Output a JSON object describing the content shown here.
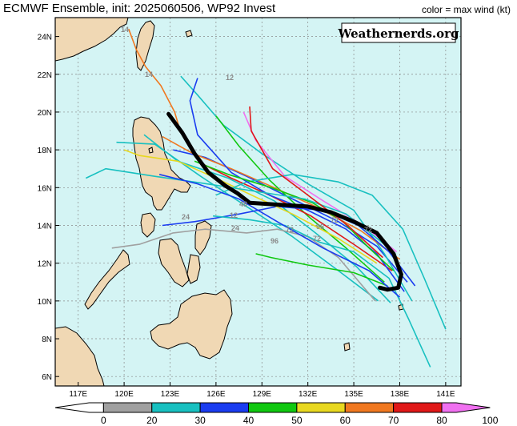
{
  "header": {
    "title": "ECMWF Ensemble, init: 2025060506, WP92 Invest",
    "color_note": "color = max wind (kt)"
  },
  "watermark": "Weathernerds.org",
  "axes": {
    "lon_labels": [
      "117E",
      "120E",
      "123E",
      "126E",
      "129E",
      "132E",
      "135E",
      "138E",
      "141E"
    ],
    "lat_labels": [
      "24N",
      "22N",
      "20N",
      "18N",
      "16N",
      "14N",
      "12N",
      "10N",
      "8N",
      "6N"
    ]
  },
  "colorbar": {
    "ticks": [
      "0",
      "20",
      "30",
      "40",
      "50",
      "60",
      "70",
      "80",
      "100"
    ],
    "colors": [
      "#ffffff",
      "#a0a0a0",
      "#18c0c0",
      "#1a3cf0",
      "#10c810",
      "#e8d820",
      "#f07820",
      "#e01818",
      "#f070f0"
    ]
  },
  "map": {
    "lon_range": [
      115.5,
      142.0
    ],
    "lat_range": [
      5.5,
      25.0
    ],
    "ocean_color": "#d4f4f4",
    "land_color": "#f0d8b4",
    "grid": true
  },
  "track_labels": [
    "14",
    "14",
    "12",
    "24",
    "24",
    "96",
    "72",
    "72",
    "72",
    "96",
    "12",
    "72",
    "48"
  ],
  "chart_data": {
    "type": "line",
    "title": "ECMWF Ensemble, init: 2025060506, WP92 Invest",
    "xlabel": "",
    "ylabel": "",
    "xlim": [
      115.5,
      142.0
    ],
    "ylim": [
      5.5,
      25.0
    ],
    "series": [
      {
        "name": "ensemble mean",
        "color": "#000000",
        "points": [
          [
            122.9,
            19.9
          ],
          [
            123.8,
            18.9
          ],
          [
            124.6,
            17.8
          ],
          [
            125.5,
            16.8
          ],
          [
            126.6,
            16.1
          ],
          [
            127.4,
            15.7
          ],
          [
            128.2,
            15.2
          ],
          [
            130.0,
            15.1
          ],
          [
            132.0,
            15.0
          ],
          [
            133.5,
            14.7
          ],
          [
            135.0,
            14.2
          ],
          [
            136.5,
            13.6
          ],
          [
            137.6,
            12.5
          ],
          [
            138.1,
            11.4
          ],
          [
            137.9,
            10.7
          ],
          [
            137.2,
            10.6
          ],
          [
            136.7,
            10.7
          ]
        ]
      },
      {
        "color": "#18c0c0",
        "points": [
          [
            136.6,
            10.0
          ],
          [
            134.0,
            11.6
          ],
          [
            131.0,
            13.4
          ],
          [
            128.0,
            15.0
          ],
          [
            125.0,
            16.6
          ],
          [
            122.0,
            18.3
          ],
          [
            119.5,
            18.4
          ]
        ]
      },
      {
        "color": "#18c0c0",
        "points": [
          [
            137.4,
            9.9
          ],
          [
            135.2,
            11.8
          ],
          [
            132.5,
            13.6
          ],
          [
            129.8,
            15.3
          ],
          [
            126.8,
            16.5
          ],
          [
            123.5,
            17.4
          ],
          [
            121.3,
            18.8
          ]
        ]
      },
      {
        "color": "#1a3cf0",
        "points": [
          [
            138.5,
            11.0
          ],
          [
            136.5,
            12.9
          ],
          [
            134.0,
            14.2
          ],
          [
            131.0,
            15.4
          ],
          [
            128.0,
            16.6
          ],
          [
            125.3,
            17.6
          ],
          [
            123.2,
            18.0
          ]
        ]
      },
      {
        "color": "#18c0c0",
        "points": [
          [
            138.8,
            10.0
          ],
          [
            137.0,
            12.5
          ],
          [
            135.0,
            14.8
          ],
          [
            132.0,
            16.2
          ],
          [
            129.0,
            17.8
          ],
          [
            126.5,
            19.3
          ],
          [
            124.8,
            20.9
          ],
          [
            123.7,
            21.9
          ]
        ]
      },
      {
        "color": "#10c810",
        "points": [
          [
            137.0,
            11.0
          ],
          [
            134.5,
            12.8
          ],
          [
            132.0,
            14.5
          ],
          [
            129.5,
            16.4
          ],
          [
            127.5,
            18.2
          ],
          [
            126.0,
            19.8
          ]
        ]
      },
      {
        "color": "#f07820",
        "points": [
          [
            138.0,
            12.2
          ],
          [
            135.5,
            13.7
          ],
          [
            132.5,
            15.0
          ],
          [
            129.8,
            16.0
          ],
          [
            127.0,
            17.0
          ],
          [
            124.5,
            17.8
          ],
          [
            122.5,
            18.7
          ]
        ]
      },
      {
        "color": "#e01818",
        "points": [
          [
            137.5,
            11.6
          ],
          [
            135.0,
            13.0
          ],
          [
            132.2,
            14.5
          ],
          [
            129.5,
            15.6
          ],
          [
            127.0,
            16.5
          ],
          [
            125.0,
            17.3
          ]
        ]
      },
      {
        "color": "#f070f0",
        "points": [
          [
            137.8,
            12.6
          ],
          [
            135.6,
            14.0
          ],
          [
            133.0,
            15.3
          ],
          [
            130.5,
            16.6
          ],
          [
            128.6,
            18.5
          ],
          [
            127.8,
            20.0
          ]
        ]
      },
      {
        "color": "#1a3cf0",
        "points": [
          [
            139.0,
            10.8
          ],
          [
            137.3,
            12.6
          ],
          [
            135.3,
            14.0
          ],
          [
            133.0,
            14.8
          ],
          [
            130.0,
            15.0
          ],
          [
            127.5,
            14.6
          ],
          [
            124.6,
            14.2
          ],
          [
            122.5,
            14.0
          ]
        ]
      },
      {
        "color": "#e8d820",
        "points": [
          [
            136.5,
            12.0
          ],
          [
            134.0,
            13.3
          ],
          [
            131.0,
            14.6
          ],
          [
            128.6,
            15.5
          ],
          [
            126.0,
            16.5
          ],
          [
            123.5,
            17.4
          ],
          [
            121.0,
            17.7
          ],
          [
            120.0,
            18.0
          ]
        ]
      },
      {
        "color": "#a0a0a0",
        "points": [
          [
            136.4,
            10.0
          ],
          [
            134.0,
            12.3
          ],
          [
            132.0,
            13.4
          ],
          [
            130.0,
            13.8
          ],
          [
            128.0,
            13.6
          ],
          [
            125.3,
            13.8
          ],
          [
            123.2,
            13.6
          ],
          [
            121.0,
            13.0
          ],
          [
            119.2,
            12.8
          ]
        ]
      },
      {
        "color": "#18c0c0",
        "points": [
          [
            141.0,
            8.5
          ],
          [
            139.6,
            11.2
          ],
          [
            138.2,
            13.8
          ],
          [
            136.2,
            15.6
          ],
          [
            134.0,
            16.3
          ],
          [
            131.0,
            16.7
          ],
          [
            128.0,
            16.3
          ],
          [
            126.0,
            15.6
          ]
        ]
      },
      {
        "color": "#18c0c0",
        "points": [
          [
            140.0,
            6.5
          ],
          [
            138.6,
            9.0
          ],
          [
            137.3,
            11.2
          ],
          [
            135.0,
            12.6
          ],
          [
            132.8,
            13.1
          ],
          [
            130.5,
            14.0
          ],
          [
            128.2,
            14.3
          ],
          [
            125.8,
            14.5
          ]
        ]
      },
      {
        "color": "#10c810",
        "points": [
          [
            137.2,
            10.8
          ],
          [
            135.0,
            11.5
          ],
          [
            132.0,
            11.9
          ],
          [
            129.6,
            12.3
          ],
          [
            128.6,
            12.5
          ]
        ]
      },
      {
        "color": "#1a3cf0",
        "points": [
          [
            138.3,
            10.5
          ],
          [
            136.5,
            12.5
          ],
          [
            134.5,
            13.8
          ],
          [
            132.0,
            14.8
          ],
          [
            129.5,
            15.6
          ],
          [
            127.0,
            16.8
          ],
          [
            124.8,
            18.8
          ],
          [
            124.3,
            20.6
          ],
          [
            124.8,
            21.8
          ]
        ]
      },
      {
        "color": "#f07820",
        "points": [
          [
            123.7,
            18.9
          ],
          [
            123.3,
            20.0
          ],
          [
            122.4,
            21.4
          ],
          [
            121.4,
            22.4
          ],
          [
            120.8,
            23.3
          ],
          [
            120.3,
            24.4
          ]
        ]
      },
      {
        "color": "#10c810",
        "points": [
          [
            137.6,
            11.6
          ],
          [
            136.0,
            12.8
          ],
          [
            134.3,
            14.2
          ],
          [
            132.3,
            15.2
          ],
          [
            129.6,
            16.0
          ],
          [
            126.8,
            16.7
          ],
          [
            124.6,
            17.4
          ]
        ]
      },
      {
        "color": "#18c0c0",
        "points": [
          [
            137.0,
            13.0
          ],
          [
            134.5,
            14.6
          ],
          [
            131.8,
            15.4
          ],
          [
            128.6,
            15.8
          ],
          [
            125.4,
            16.2
          ],
          [
            122.0,
            16.6
          ],
          [
            118.8,
            17.0
          ],
          [
            117.5,
            16.5
          ]
        ]
      },
      {
        "color": "#1a3cf0",
        "points": [
          [
            138.0,
            10.2
          ],
          [
            136.0,
            11.6
          ],
          [
            133.0,
            12.8
          ],
          [
            130.0,
            14.2
          ],
          [
            127.5,
            15.4
          ],
          [
            124.8,
            16.2
          ],
          [
            122.3,
            16.7
          ]
        ]
      },
      {
        "color": "#e01818",
        "points": [
          [
            136.9,
            12.3
          ],
          [
            134.6,
            14.0
          ],
          [
            132.0,
            15.6
          ],
          [
            129.7,
            17.0
          ],
          [
            128.3,
            19.0
          ],
          [
            128.2,
            20.3
          ]
        ]
      }
    ]
  }
}
